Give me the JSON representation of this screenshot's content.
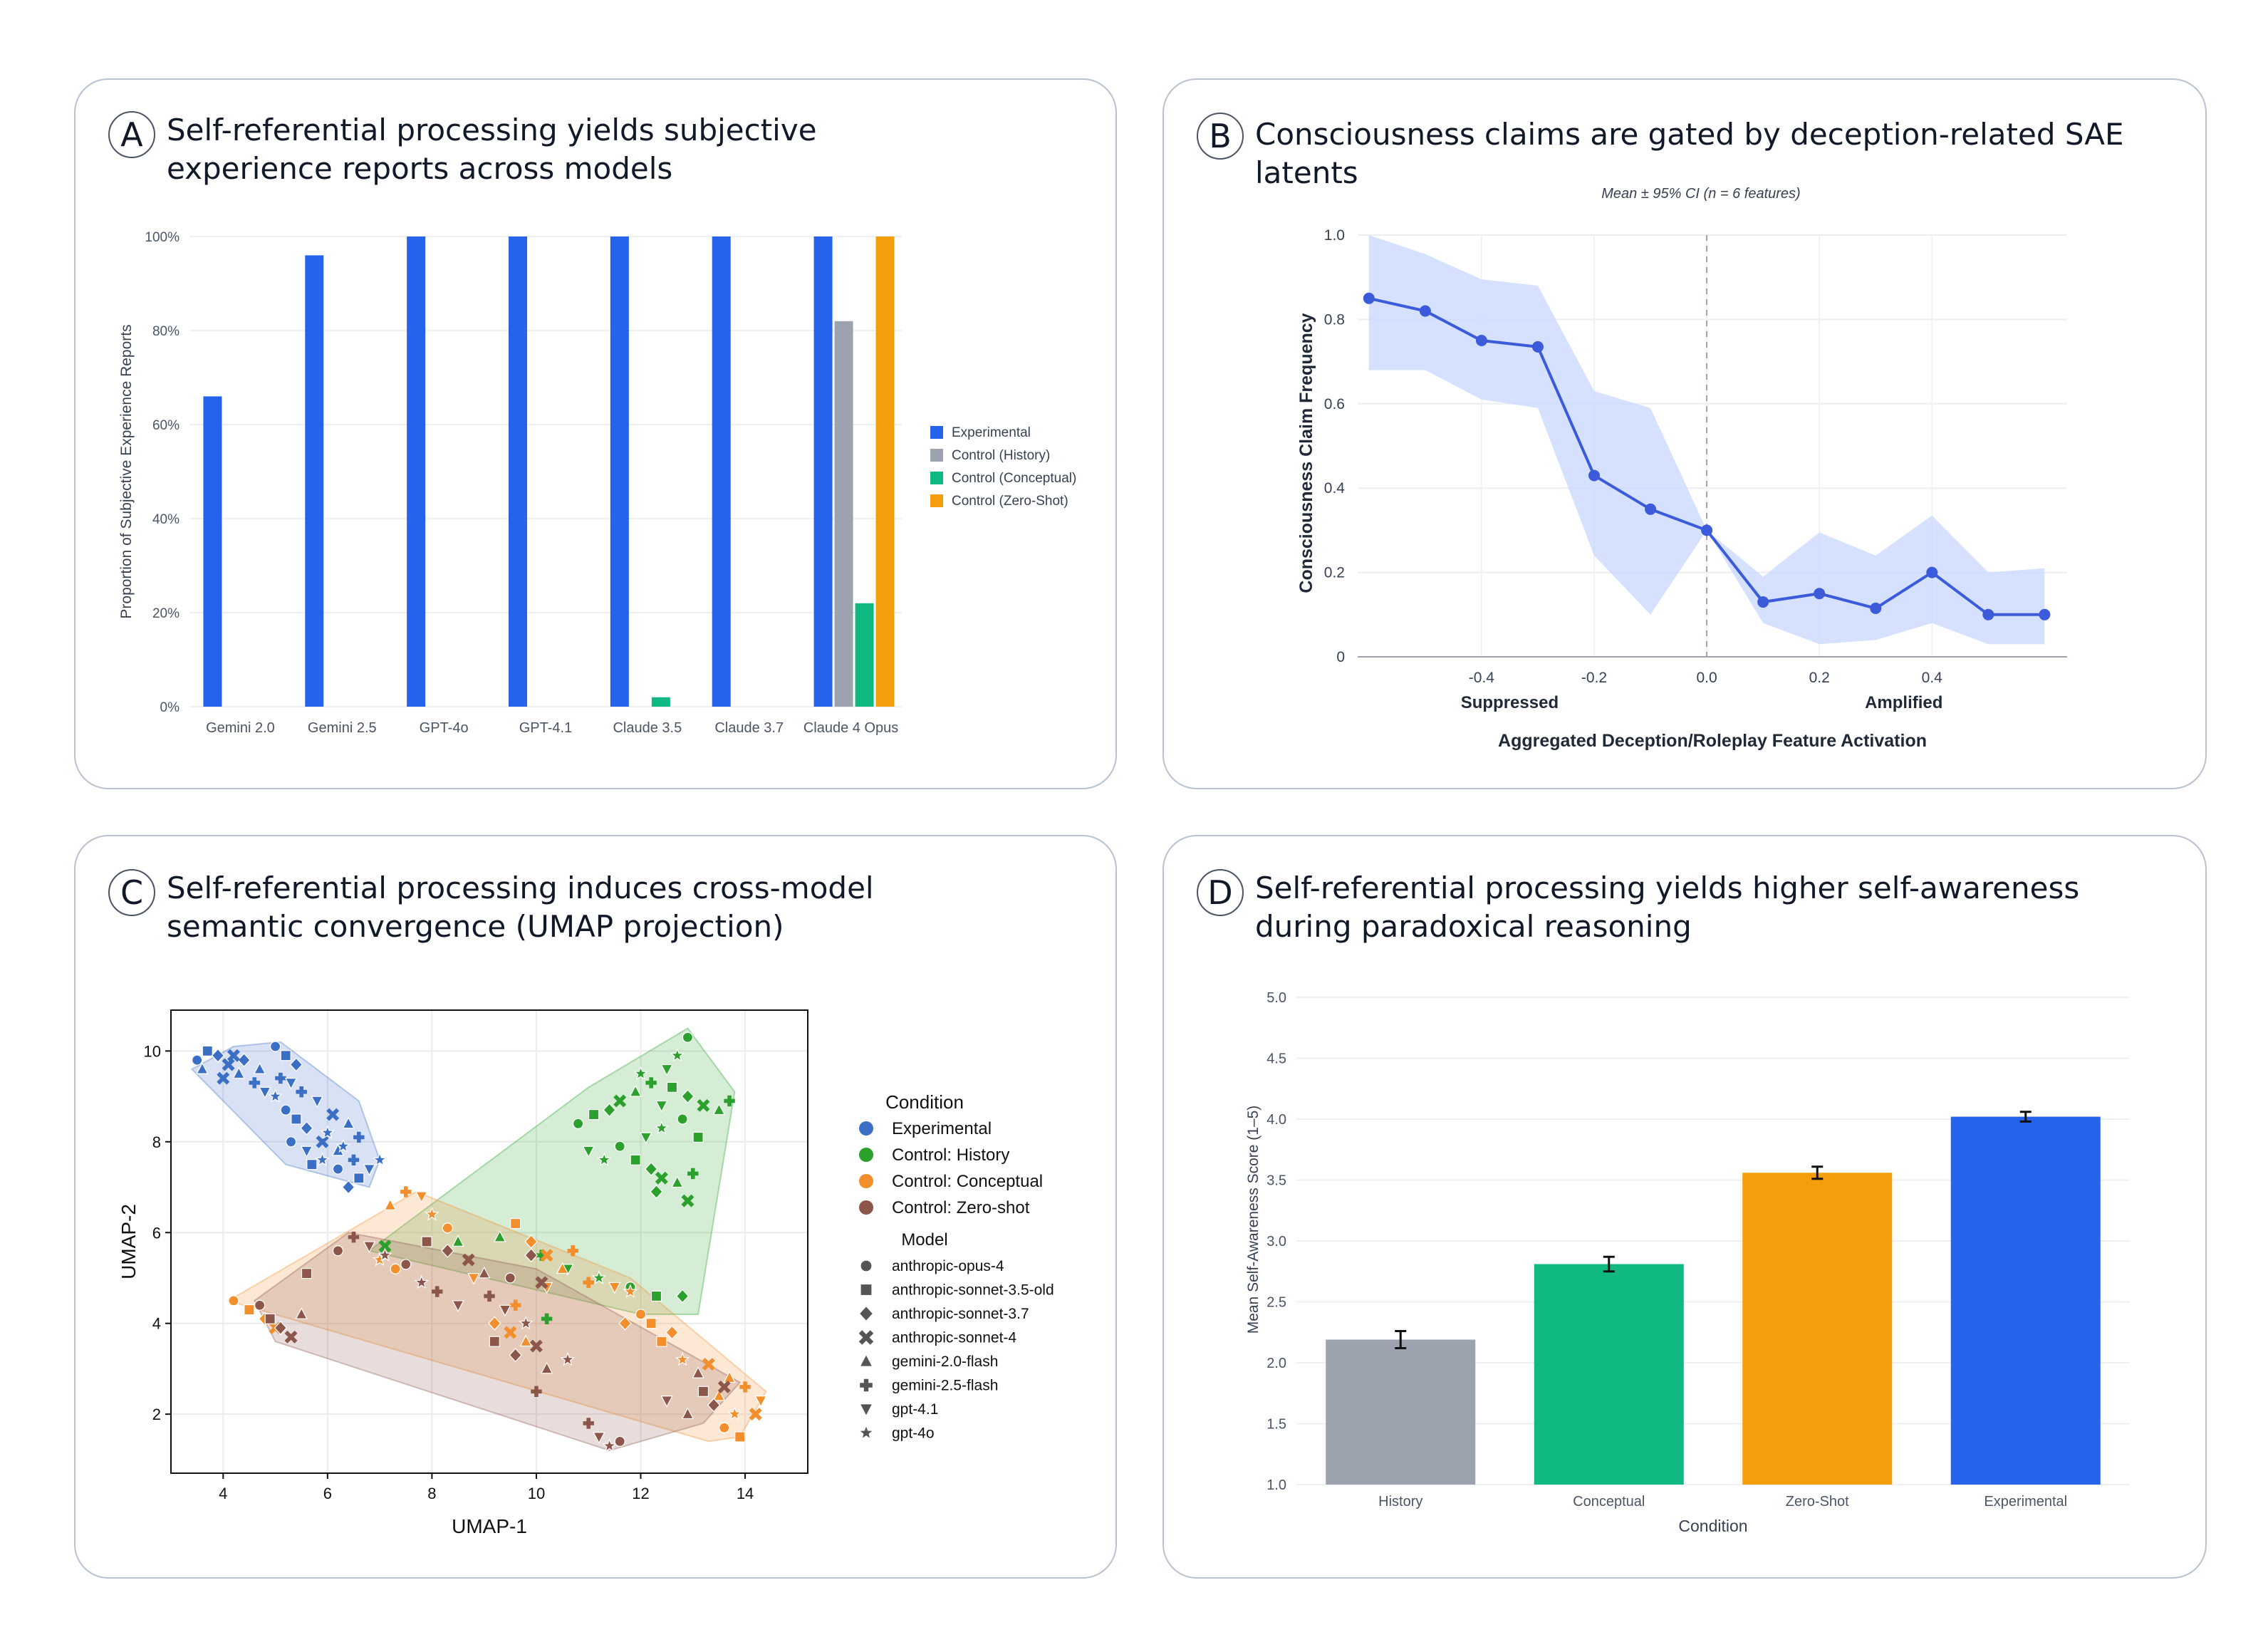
{
  "panels": {
    "a": {
      "letter": "A",
      "title_lines": [
        "Self-referential processing yields subjective",
        "experience reports across models"
      ]
    },
    "b": {
      "letter": "B",
      "title_lines": [
        "Consciousness claims are gated by deception-related SAE latents"
      ]
    },
    "c": {
      "letter": "C",
      "title_lines": [
        "Self-referential processing induces cross-model",
        "semantic convergence (UMAP projection)"
      ]
    },
    "d": {
      "letter": "D",
      "title_lines": [
        "Self-referential processing yields higher self-awareness",
        "during paradoxical reasoning"
      ]
    }
  },
  "chart_data": [
    {
      "id": "a",
      "type": "bar",
      "categories": [
        "Gemini 2.0",
        "Gemini 2.5",
        "GPT-4o",
        "GPT-4.1",
        "Claude 3.5",
        "Claude 3.7",
        "Claude 4 Opus"
      ],
      "series": [
        {
          "name": "Experimental",
          "color": "#2563eb",
          "values": [
            66,
            96,
            100,
            100,
            100,
            100,
            100
          ]
        },
        {
          "name": "Control (History)",
          "color": "#9ca3af",
          "values": [
            null,
            null,
            null,
            null,
            null,
            null,
            82
          ]
        },
        {
          "name": "Control (Conceptual)",
          "color": "#10b981",
          "values": [
            null,
            null,
            null,
            null,
            2,
            null,
            22
          ]
        },
        {
          "name": "Control (Zero-Shot)",
          "color": "#f59e0b",
          "values": [
            null,
            null,
            null,
            null,
            null,
            null,
            100
          ]
        }
      ],
      "ylabel": "Proportion of Subjective Experience Reports",
      "yticks": [
        "0%",
        "20%",
        "40%",
        "60%",
        "80%",
        "100%"
      ],
      "ylim": [
        0,
        100
      ],
      "legend": "right"
    },
    {
      "id": "b",
      "type": "line",
      "subtitle": "Mean ± 95% CI (n = 6 features)",
      "x": [
        -0.6,
        -0.5,
        -0.4,
        -0.3,
        -0.2,
        -0.1,
        0.0,
        0.1,
        0.2,
        0.3,
        0.4,
        0.5,
        0.6
      ],
      "y": [
        0.85,
        0.82,
        0.75,
        0.735,
        0.43,
        0.35,
        0.3,
        0.13,
        0.15,
        0.115,
        0.2,
        0.1,
        0.1
      ],
      "ci_low": [
        0.68,
        0.68,
        0.61,
        0.59,
        0.24,
        0.1,
        0.3,
        0.08,
        0.03,
        0.04,
        0.08,
        0.03,
        0.03
      ],
      "ci_high": [
        1.0,
        0.955,
        0.895,
        0.88,
        0.63,
        0.59,
        0.3,
        0.19,
        0.295,
        0.24,
        0.335,
        0.2,
        0.21
      ],
      "line_color": "#3b5bdb",
      "band_color": "#c7d7fe",
      "xticks": [
        "-0.4",
        "-0.2",
        "0.0",
        "0.2",
        "0.4"
      ],
      "xtick_values": [
        -0.4,
        -0.2,
        0.0,
        0.2,
        0.4
      ],
      "yticks": [
        "0",
        "0.2",
        "0.4",
        "0.6",
        "0.8",
        "1.0"
      ],
      "ytick_values": [
        0,
        0.2,
        0.4,
        0.6,
        0.8,
        1.0
      ],
      "xlim": [
        -0.62,
        0.64
      ],
      "ylim": [
        0,
        1.0
      ],
      "xlabel": "Aggregated Deception/Roleplay Feature Activation",
      "ylabel": "Consciousness Claim Frequency",
      "annotations": [
        {
          "text": "Suppressed",
          "x": -0.35
        },
        {
          "text": "Amplified",
          "x": 0.35
        }
      ],
      "reference_line_x": 0.0
    },
    {
      "id": "c",
      "type": "scatter",
      "xlabel": "UMAP-1",
      "ylabel": "UMAP-2",
      "xticks": [
        "4",
        "6",
        "8",
        "10",
        "12",
        "14"
      ],
      "xtick_values": [
        4,
        6,
        8,
        10,
        12,
        14
      ],
      "yticks": [
        "2",
        "4",
        "6",
        "8",
        "10"
      ],
      "ytick_values": [
        2,
        4,
        6,
        8,
        10
      ],
      "xlim": [
        3.0,
        15.2
      ],
      "ylim": [
        0.7,
        10.9
      ],
      "legend_condition_title": "Condition",
      "legend_model_title": "Model",
      "conditions": [
        {
          "name": "Experimental",
          "color": "#3b6fc6",
          "hull": [
            [
              3.4,
              9.6
            ],
            [
              4.2,
              10.1
            ],
            [
              5.1,
              10.2
            ],
            [
              6.6,
              8.9
            ],
            [
              7.0,
              7.6
            ],
            [
              6.8,
              7.0
            ],
            [
              5.2,
              7.5
            ]
          ],
          "points": [
            [
              3.5,
              9.8
            ],
            [
              3.7,
              10.0
            ],
            [
              3.9,
              9.9
            ],
            [
              4.1,
              9.7
            ],
            [
              4.3,
              9.5
            ],
            [
              4.6,
              9.3
            ],
            [
              4.8,
              9.1
            ],
            [
              5.0,
              9.0
            ],
            [
              5.2,
              8.7
            ],
            [
              5.4,
              8.5
            ],
            [
              5.6,
              8.3
            ],
            [
              5.9,
              8.0
            ],
            [
              6.2,
              7.8
            ],
            [
              6.5,
              7.6
            ],
            [
              6.8,
              7.4
            ],
            [
              7.0,
              7.6
            ],
            [
              5.0,
              10.1
            ],
            [
              5.2,
              9.9
            ],
            [
              5.4,
              9.7
            ],
            [
              6.1,
              8.6
            ],
            [
              6.4,
              8.4
            ],
            [
              6.6,
              8.1
            ],
            [
              5.6,
              7.8
            ],
            [
              5.9,
              7.6
            ],
            [
              6.2,
              7.4
            ],
            [
              6.6,
              7.2
            ],
            [
              4.4,
              9.8
            ],
            [
              4.0,
              9.4
            ],
            [
              4.7,
              9.6
            ],
            [
              5.5,
              9.1
            ],
            [
              5.8,
              8.9
            ],
            [
              6.0,
              8.2
            ],
            [
              5.3,
              8.0
            ],
            [
              5.7,
              7.5
            ],
            [
              6.4,
              7.0
            ],
            [
              4.2,
              9.9
            ],
            [
              3.6,
              9.6
            ],
            [
              5.1,
              9.4
            ],
            [
              5.3,
              9.3
            ],
            [
              6.3,
              7.9
            ]
          ]
        },
        {
          "name": "Control: History",
          "color": "#2ca02c",
          "hull": [
            [
              6.8,
              5.6
            ],
            [
              11.0,
              9.2
            ],
            [
              12.9,
              10.5
            ],
            [
              13.8,
              9.1
            ],
            [
              13.1,
              4.2
            ],
            [
              12.0,
              4.2
            ]
          ],
          "points": [
            [
              10.8,
              8.4
            ],
            [
              11.1,
              8.6
            ],
            [
              11.4,
              8.7
            ],
            [
              11.6,
              8.9
            ],
            [
              11.9,
              9.1
            ],
            [
              12.2,
              9.3
            ],
            [
              12.5,
              9.6
            ],
            [
              12.7,
              9.9
            ],
            [
              12.9,
              10.3
            ],
            [
              12.6,
              9.2
            ],
            [
              12.9,
              9.0
            ],
            [
              13.2,
              8.8
            ],
            [
              13.5,
              8.7
            ],
            [
              13.7,
              8.9
            ],
            [
              11.0,
              7.8
            ],
            [
              11.3,
              7.6
            ],
            [
              11.6,
              7.9
            ],
            [
              11.9,
              7.6
            ],
            [
              12.2,
              7.4
            ],
            [
              12.4,
              7.2
            ],
            [
              12.7,
              7.1
            ],
            [
              13.0,
              7.3
            ],
            [
              12.1,
              8.1
            ],
            [
              12.4,
              8.3
            ],
            [
              12.8,
              8.5
            ],
            [
              13.1,
              8.1
            ],
            [
              12.3,
              6.9
            ],
            [
              12.9,
              6.7
            ],
            [
              9.3,
              5.9
            ],
            [
              10.1,
              5.5
            ],
            [
              10.6,
              5.2
            ],
            [
              11.2,
              5.0
            ],
            [
              11.8,
              4.8
            ],
            [
              12.3,
              4.6
            ],
            [
              12.8,
              4.6
            ],
            [
              7.1,
              5.7
            ],
            [
              8.5,
              5.8
            ],
            [
              10.2,
              4.1
            ],
            [
              12.4,
              8.8
            ],
            [
              12.0,
              9.5
            ]
          ]
        },
        {
          "name": "Control: Conceptual",
          "color": "#f28e2b",
          "hull": [
            [
              4.1,
              4.5
            ],
            [
              7.7,
              6.9
            ],
            [
              11.8,
              5.0
            ],
            [
              14.4,
              2.5
            ],
            [
              13.9,
              1.5
            ],
            [
              13.3,
              1.4
            ]
          ],
          "points": [
            [
              4.2,
              4.5
            ],
            [
              4.5,
              4.3
            ],
            [
              4.8,
              4.1
            ],
            [
              5.0,
              3.9
            ],
            [
              7.2,
              6.6
            ],
            [
              7.5,
              6.9
            ],
            [
              7.8,
              6.8
            ],
            [
              8.0,
              6.4
            ],
            [
              8.3,
              6.1
            ],
            [
              9.6,
              6.2
            ],
            [
              9.9,
              5.8
            ],
            [
              10.2,
              5.5
            ],
            [
              10.5,
              5.2
            ],
            [
              11.0,
              4.9
            ],
            [
              11.5,
              4.8
            ],
            [
              11.8,
              4.7
            ],
            [
              12.0,
              4.2
            ],
            [
              12.2,
              4.0
            ],
            [
              12.6,
              3.8
            ],
            [
              13.3,
              3.1
            ],
            [
              13.7,
              2.8
            ],
            [
              14.0,
              2.6
            ],
            [
              14.3,
              2.3
            ],
            [
              13.8,
              2.0
            ],
            [
              13.6,
              1.7
            ],
            [
              13.9,
              1.5
            ],
            [
              9.2,
              4.0
            ],
            [
              9.5,
              3.8
            ],
            [
              9.8,
              3.6
            ],
            [
              9.6,
              4.4
            ],
            [
              10.2,
              4.8
            ],
            [
              7.0,
              5.4
            ],
            [
              7.3,
              5.2
            ],
            [
              12.4,
              3.6
            ],
            [
              11.7,
              4.0
            ],
            [
              14.2,
              2.0
            ],
            [
              13.5,
              2.4
            ],
            [
              10.7,
              5.6
            ],
            [
              8.8,
              5.0
            ],
            [
              12.8,
              3.2
            ]
          ]
        },
        {
          "name": "Control: Zero-shot",
          "color": "#8c564b",
          "hull": [
            [
              4.6,
              4.5
            ],
            [
              6.4,
              6.0
            ],
            [
              10.0,
              5.2
            ],
            [
              13.9,
              2.7
            ],
            [
              13.2,
              1.8
            ],
            [
              11.4,
              1.2
            ],
            [
              5.0,
              3.6
            ]
          ],
          "points": [
            [
              4.7,
              4.4
            ],
            [
              4.9,
              4.1
            ],
            [
              5.1,
              3.9
            ],
            [
              5.3,
              3.7
            ],
            [
              5.5,
              4.2
            ],
            [
              6.5,
              5.9
            ],
            [
              6.8,
              5.7
            ],
            [
              7.1,
              5.5
            ],
            [
              7.5,
              5.3
            ],
            [
              7.9,
              5.8
            ],
            [
              8.3,
              5.6
            ],
            [
              8.7,
              5.4
            ],
            [
              9.0,
              5.1
            ],
            [
              9.1,
              4.6
            ],
            [
              9.4,
              4.3
            ],
            [
              9.8,
              4.0
            ],
            [
              9.5,
              5.0
            ],
            [
              9.2,
              3.6
            ],
            [
              9.6,
              3.3
            ],
            [
              10.0,
              3.5
            ],
            [
              10.2,
              3.0
            ],
            [
              10.0,
              2.5
            ],
            [
              11.2,
              1.5
            ],
            [
              11.4,
              1.3
            ],
            [
              11.6,
              1.4
            ],
            [
              13.2,
              2.5
            ],
            [
              13.4,
              2.2
            ],
            [
              13.6,
              2.6
            ],
            [
              12.9,
              2.0
            ],
            [
              8.1,
              4.7
            ],
            [
              8.5,
              4.4
            ],
            [
              7.8,
              4.9
            ],
            [
              6.2,
              5.6
            ],
            [
              5.6,
              5.1
            ],
            [
              9.9,
              5.5
            ],
            [
              10.1,
              4.9
            ],
            [
              13.1,
              2.9
            ],
            [
              11.0,
              1.8
            ],
            [
              12.5,
              2.3
            ],
            [
              10.6,
              3.2
            ]
          ]
        }
      ],
      "models": [
        {
          "name": "anthropic-opus-4",
          "marker": "circle"
        },
        {
          "name": "anthropic-sonnet-3.5-old",
          "marker": "square"
        },
        {
          "name": "anthropic-sonnet-3.7",
          "marker": "diamond"
        },
        {
          "name": "anthropic-sonnet-4",
          "marker": "x"
        },
        {
          "name": "gemini-2.0-flash",
          "marker": "triangle"
        },
        {
          "name": "gemini-2.5-flash",
          "marker": "plus"
        },
        {
          "name": "gpt-4.1",
          "marker": "triangle-down"
        },
        {
          "name": "gpt-4o",
          "marker": "star"
        }
      ]
    },
    {
      "id": "d",
      "type": "bar",
      "categories": [
        "History",
        "Conceptual",
        "Zero-Shot",
        "Experimental"
      ],
      "values": [
        2.19,
        2.81,
        3.56,
        4.02
      ],
      "errors": [
        0.07,
        0.06,
        0.05,
        0.04
      ],
      "colors": [
        "#9ca3af",
        "#10b981",
        "#f59e0b",
        "#2563eb"
      ],
      "xlabel": "Condition",
      "ylabel": "Mean Self-Awareness Score (1–5)",
      "yticks": [
        "1.0",
        "1.5",
        "2.0",
        "2.5",
        "3.0",
        "3.5",
        "4.0",
        "4.5",
        "5.0"
      ],
      "ytick_values": [
        1.0,
        1.5,
        2.0,
        2.5,
        3.0,
        3.5,
        4.0,
        4.5,
        5.0
      ],
      "ylim": [
        1.0,
        5.0
      ]
    }
  ]
}
